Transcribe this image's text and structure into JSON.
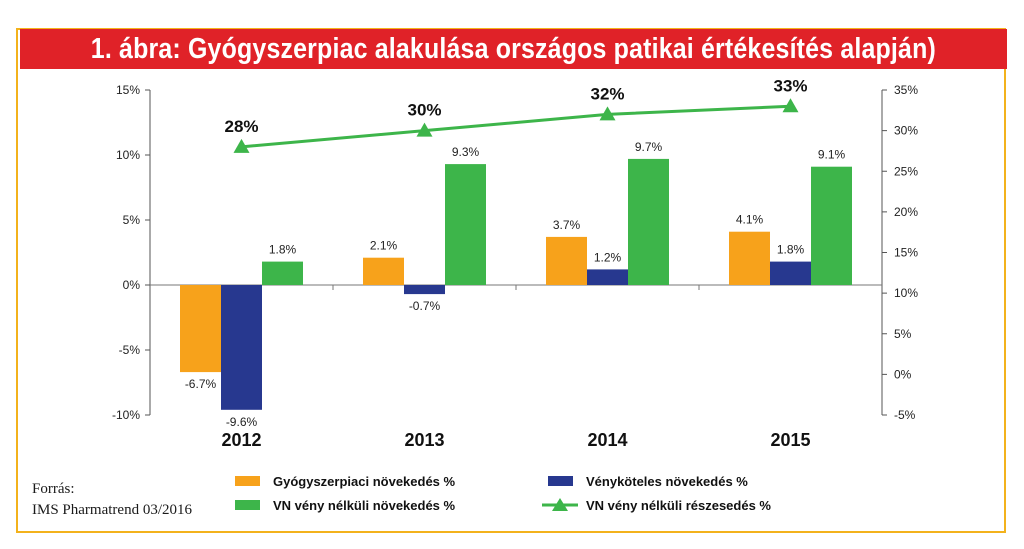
{
  "chart_data": {
    "type": "bar",
    "title": "1. ábra: Gyógyszerpiac alakulása országos patikai értékesítés alapján)",
    "categories": [
      "2012",
      "2013",
      "2014",
      "2015"
    ],
    "series": [
      {
        "name": "Gyógyszerpiaci növekedés %",
        "type": "bar",
        "axis": "left",
        "color": "#f7a21b",
        "values": [
          -6.7,
          2.1,
          3.7,
          4.1
        ],
        "labels": [
          "-6.7%",
          "2.1%",
          "3.7%",
          "4.1%"
        ]
      },
      {
        "name": "Vényköteles növekedés %",
        "type": "bar",
        "axis": "left",
        "color": "#27388f",
        "values": [
          -9.6,
          -0.7,
          1.2,
          1.8
        ],
        "labels": [
          "-9.6%",
          "-0.7%",
          "1.2%",
          "1.8%"
        ]
      },
      {
        "name": "VN vény nélküli növekedés %",
        "type": "bar",
        "axis": "left",
        "color": "#3db54a",
        "values": [
          1.8,
          9.3,
          9.7,
          9.1
        ],
        "labels": [
          "1.8%",
          "9.3%",
          "9.7%",
          "9.1%"
        ]
      },
      {
        "name": "VN vény nélküli részesedés %",
        "type": "line",
        "axis": "right",
        "color": "#3db54a",
        "values": [
          28,
          30,
          32,
          33
        ],
        "labels": [
          "28%",
          "30%",
          "32%",
          "33%"
        ]
      }
    ],
    "y_left": {
      "ylim": [
        -10,
        15
      ],
      "ticks": [
        15,
        10,
        5,
        0,
        -5,
        -10
      ],
      "tick_labels": [
        "15%",
        "10%",
        "5%",
        "0%",
        "-5%",
        "-10%"
      ]
    },
    "y_right": {
      "ylim": [
        -5,
        35
      ],
      "ticks": [
        35,
        30,
        25,
        20,
        15,
        10,
        5,
        0,
        -5
      ],
      "tick_labels": [
        "35%",
        "30%",
        "25%",
        "20%",
        "15%",
        "10%",
        "5%",
        "0%",
        "-5%"
      ]
    },
    "grid": false,
    "legend_position": "bottom"
  },
  "source": {
    "line1": "Forrás:",
    "line2": "IMS Pharmatrend 03/2016"
  }
}
